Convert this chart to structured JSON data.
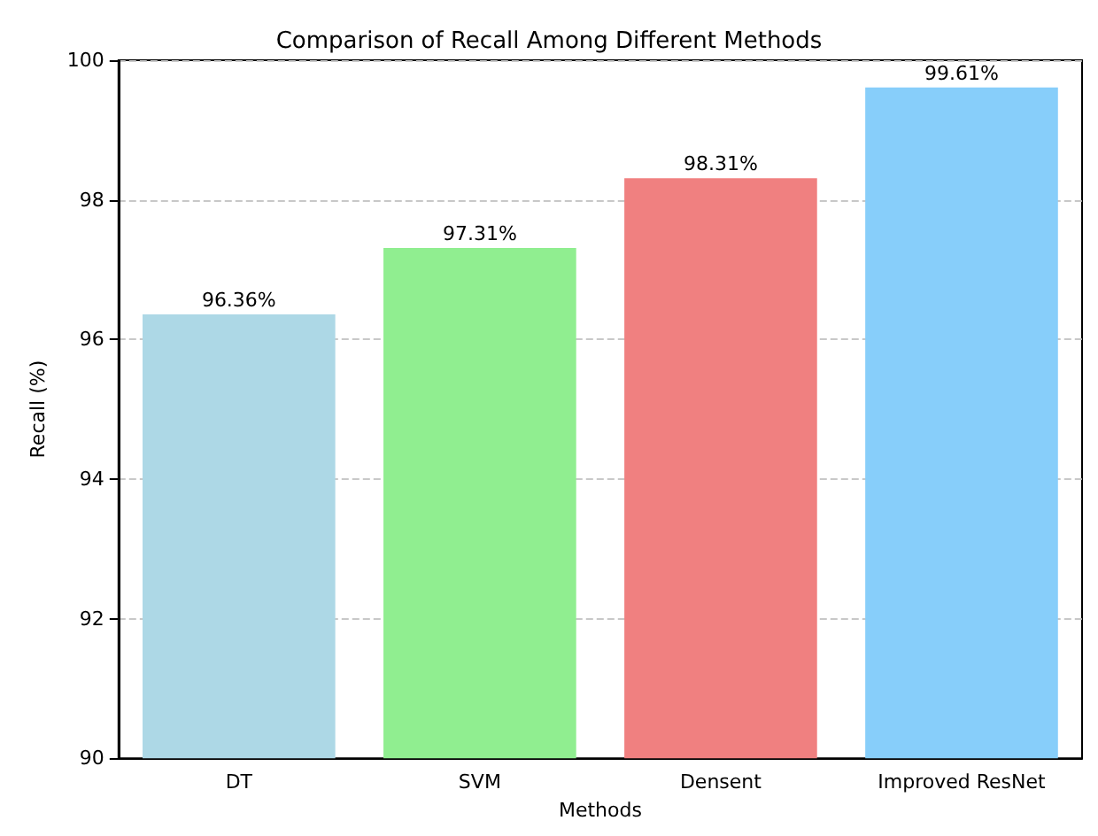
{
  "chart_data": {
    "type": "bar",
    "title": "Comparison of Recall Among Different Methods",
    "xlabel": "Methods",
    "ylabel": "Recall (%)",
    "categories": [
      "DT",
      "SVM",
      "Densent",
      "Improved ResNet"
    ],
    "values": [
      96.36,
      97.31,
      98.31,
      99.61
    ],
    "colors": [
      "#add8e6",
      "#90ee90",
      "#f08080",
      "#87cefa"
    ],
    "value_labels": [
      "96.36%",
      "97.31%",
      "98.31%",
      "99.61%"
    ],
    "ylim": [
      90,
      100
    ],
    "yticks": [
      90,
      92,
      94,
      96,
      98,
      100
    ],
    "grid": "y"
  }
}
